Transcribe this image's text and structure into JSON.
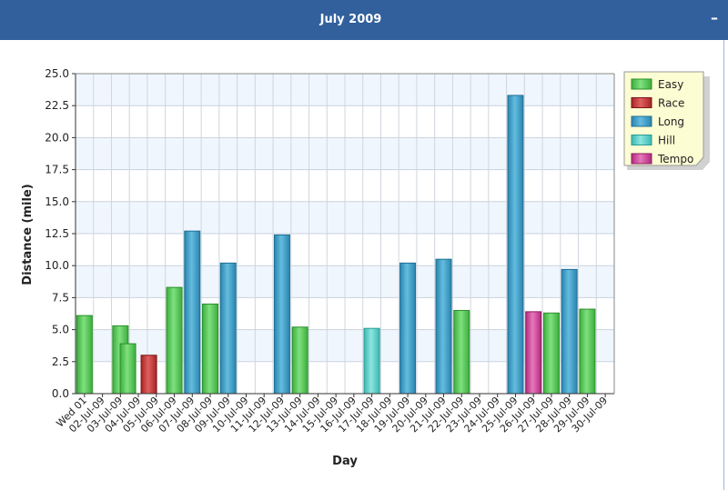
{
  "header": {
    "title": "July 2009",
    "collapse_label": "–",
    "collapse_icon": "minus-icon"
  },
  "chart_data": {
    "type": "bar",
    "xlabel": "Day",
    "ylabel": "Distance (mile)",
    "ylim": [
      0,
      25
    ],
    "yticks": [
      "0.0",
      "2.5",
      "5.0",
      "7.5",
      "10.0",
      "12.5",
      "15.0",
      "17.5",
      "20.0",
      "22.5",
      "25.0"
    ],
    "grid": true,
    "legend_position": "top-right",
    "categories": [
      "Wed 01",
      "02-Jul-09",
      "03-Jul-09",
      "04-Jul-09",
      "05-Jul-09",
      "06-Jul-09",
      "07-Jul-09",
      "08-Jul-09",
      "09-Jul-09",
      "10-Jul-09",
      "11-Jul-09",
      "12-Jul-09",
      "13-Jul-09",
      "14-Jul-09",
      "15-Jul-09",
      "16-Jul-09",
      "17-Jul-09",
      "18-Jul-09",
      "19-Jul-09",
      "20-Jul-09",
      "21-Jul-09",
      "22-Jul-09",
      "23-Jul-09",
      "24-Jul-09",
      "25-Jul-09",
      "26-Jul-09",
      "27-Jul-09",
      "28-Jul-09",
      "29-Jul-09",
      "30-Jul-09"
    ],
    "series": [
      {
        "name": "Easy",
        "color": "#5ccb5c",
        "values": [
          6.1,
          0,
          5.3,
          3.9,
          0,
          8.3,
          0,
          7.0,
          0,
          0,
          0,
          0,
          5.2,
          0,
          0,
          0,
          0,
          0,
          0,
          0,
          0,
          6.5,
          0,
          0,
          0,
          0,
          6.3,
          0,
          6.6,
          0
        ]
      },
      {
        "name": "Race",
        "color": "#c03434",
        "values": [
          0,
          0,
          0,
          3.0,
          0,
          0,
          0,
          0,
          0,
          0,
          0,
          0,
          0,
          0,
          0,
          0,
          0,
          0,
          0,
          0,
          0,
          0,
          0,
          0,
          0,
          0,
          0,
          0,
          0,
          0
        ]
      },
      {
        "name": "Long",
        "color": "#3a9fc8",
        "values": [
          0,
          0,
          0,
          0,
          0,
          0,
          12.7,
          0,
          10.2,
          0,
          0,
          12.4,
          0,
          0,
          0,
          0,
          0,
          0,
          10.2,
          0,
          10.5,
          0,
          0,
          0,
          23.3,
          0,
          0,
          9.7,
          0,
          0
        ]
      },
      {
        "name": "Hill",
        "color": "#5fd0c8",
        "values": [
          0,
          0,
          0,
          0,
          0,
          0,
          0,
          0,
          0,
          0,
          0,
          0,
          0,
          0,
          0,
          0,
          5.1,
          0,
          0,
          0,
          0,
          0,
          0,
          0,
          0,
          0,
          0,
          0,
          0,
          0
        ]
      },
      {
        "name": "Tempo",
        "color": "#d04a98",
        "values": [
          0,
          0,
          0,
          0,
          0,
          0,
          0,
          0,
          0,
          0,
          0,
          0,
          0,
          0,
          0,
          0,
          0,
          0,
          0,
          0,
          0,
          0,
          0,
          0,
          0,
          6.4,
          0,
          0,
          0,
          0
        ]
      }
    ]
  }
}
